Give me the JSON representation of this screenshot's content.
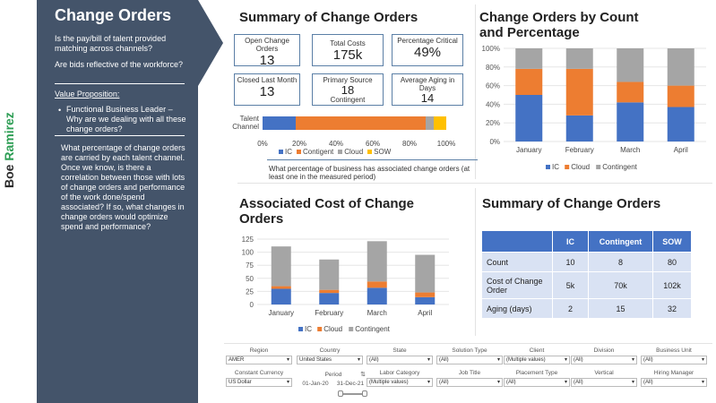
{
  "brand": {
    "first": "Boe",
    "last": "Ramirez"
  },
  "sidebar": {
    "title": "Change Orders",
    "q1": "Is the pay/bill of talent provided matching across channels?",
    "q2": "Are bids reflective of the workforce?",
    "vp_heading": "Value Proposition:",
    "vp_bullet": "Functional Business Leader – Why are we dealing with all these change orders?",
    "question": "What percentage of change orders are carried by each talent channel. Once we know, is there a correlation between those with lots of change orders and performance of the work done/spend associated? If so, what changes in change orders would optimize spend and performance?"
  },
  "summary_title": "Summary of Change Orders",
  "kpis": [
    {
      "label": "Open Change Orders",
      "value": "13"
    },
    {
      "label": "Total Costs",
      "value": "175k"
    },
    {
      "label": "Percentage Critical",
      "value": "49%"
    },
    {
      "label": "Closed Last Month",
      "value": "13"
    },
    {
      "label": "Primary Source",
      "value": "18",
      "sub": "Contingent"
    },
    {
      "label": "Average Aging in Days",
      "value": "14"
    }
  ],
  "talent_bar": {
    "ylabel": "Talent Channel",
    "segments": [
      {
        "name": "IC",
        "pct": 18,
        "color": "#4472c4"
      },
      {
        "name": "Contigent",
        "pct": 71,
        "color": "#ed7d31"
      },
      {
        "name": "Cloud",
        "pct": 4,
        "color": "#a5a5a5"
      },
      {
        "name": "SOW",
        "pct": 7,
        "color": "#ffc000"
      }
    ],
    "ticks": [
      "0%",
      "20%",
      "40%",
      "60%",
      "80%",
      "100%"
    ],
    "legend": [
      "IC",
      "Contigent",
      "Cloud",
      "SOW"
    ],
    "note": "What percentage of business has associated change orders (at least one in the measured period)"
  },
  "chart_data": [
    {
      "type": "bar",
      "stacked": true,
      "title": "Change Orders by Count and Percentage",
      "categories": [
        "January",
        "February",
        "March",
        "April"
      ],
      "series": [
        {
          "name": "IC",
          "color": "#4472c4",
          "values": [
            50,
            28,
            42,
            37
          ]
        },
        {
          "name": "Cloud",
          "color": "#ed7d31",
          "values": [
            28,
            50,
            22,
            23
          ]
        },
        {
          "name": "Contingent",
          "color": "#a5a5a5",
          "values": [
            22,
            22,
            36,
            40
          ]
        }
      ],
      "yticks": [
        "0%",
        "20%",
        "40%",
        "60%",
        "80%",
        "100%"
      ],
      "ylim": [
        0,
        100
      ]
    },
    {
      "type": "bar",
      "stacked": true,
      "title": "Associated Cost of Change Orders",
      "categories": [
        "January",
        "February",
        "March",
        "April"
      ],
      "series": [
        {
          "name": "IC",
          "color": "#4472c4",
          "values": [
            30,
            22,
            32,
            14
          ]
        },
        {
          "name": "Cloud",
          "color": "#ed7d31",
          "values": [
            5,
            6,
            12,
            9
          ]
        },
        {
          "name": "Contingent",
          "color": "#a5a5a5",
          "values": [
            76,
            58,
            77,
            72
          ]
        }
      ],
      "yticks": [
        "0",
        "25",
        "50",
        "75",
        "100",
        "125"
      ],
      "ylim": [
        0,
        125
      ]
    }
  ],
  "summary_table": {
    "title": "Summary of Change Orders",
    "headers": [
      "",
      "IC",
      "Contingent",
      "SOW"
    ],
    "rows": [
      [
        "Count",
        "10",
        "8",
        "80"
      ],
      [
        "Cost of Change Order",
        "5k",
        "70k",
        "102k"
      ],
      [
        "Aging (days)",
        "2",
        "15",
        "32"
      ]
    ]
  },
  "filters": {
    "row1": [
      {
        "label": "Region",
        "value": "AMER"
      },
      {
        "label": "Country",
        "value": "United States"
      },
      {
        "label": "State",
        "value": "(All)"
      },
      {
        "label": "Solution Type",
        "value": "(All)"
      },
      {
        "label": "Client",
        "value": "(Multiple values)"
      },
      {
        "label": "Division",
        "value": "(All)"
      },
      {
        "label": "Business Unit",
        "value": "(All)"
      }
    ],
    "row2": [
      {
        "label": "Constant Currency",
        "value": "US Dollar"
      },
      {
        "label": "Labor Category",
        "value": "(Multiple values)"
      },
      {
        "label": "Job Title",
        "value": "(All)"
      },
      {
        "label": "Placement Type",
        "value": "(All)"
      },
      {
        "label": "Vertical",
        "value": "(All)"
      },
      {
        "label": "Hiring Manager",
        "value": "(All)"
      }
    ],
    "period": {
      "label": "Period",
      "start": "01-Jan-20",
      "end": "31-Dec-21"
    }
  }
}
